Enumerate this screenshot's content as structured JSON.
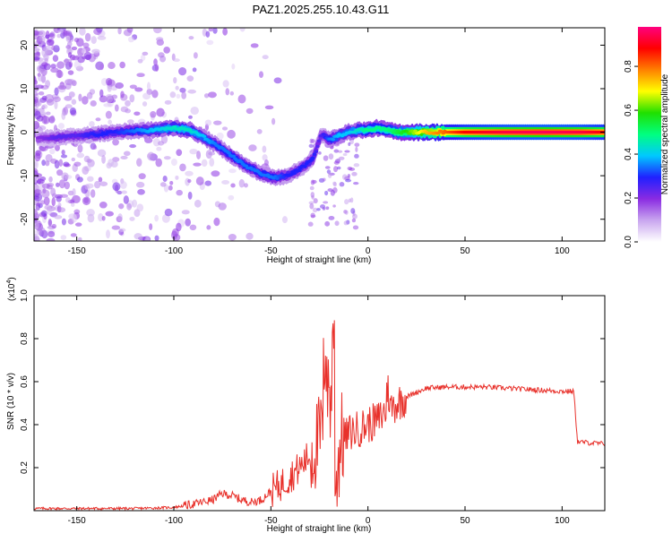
{
  "title": "PAZ1.2025.255.10.43.G11",
  "chart_data": [
    {
      "type": "heatmap",
      "xlabel": "Height of straight line (km)",
      "ylabel": "Frequency (Hz)",
      "xlim": [
        -172,
        122
      ],
      "ylim": [
        -25,
        24
      ],
      "xticks": [
        -150,
        -100,
        -50,
        0,
        50,
        100
      ],
      "yticks": [
        20,
        10,
        0,
        -10,
        -20
      ],
      "colorbar": {
        "label": "Normalized spectral amplitude",
        "range": [
          0,
          0.98
        ],
        "ticks": [
          0.0,
          0.2,
          0.4,
          0.6,
          0.8
        ],
        "colors": [
          "#ffffff",
          "#c9a6ef",
          "#8a2be2",
          "#2020ff",
          "#00c8ff",
          "#00ff80",
          "#20e000",
          "#ffff00",
          "#ff8000",
          "#ff0000",
          "#ff007f"
        ]
      },
      "ridge": {
        "x": [
          -170,
          -160,
          -150,
          -140,
          -130,
          -120,
          -110,
          -100,
          -92,
          -85,
          -78,
          -70,
          -62,
          -55,
          -48,
          -42,
          -37,
          -32,
          -28,
          -26,
          -24,
          -22,
          -20,
          -15,
          -10,
          -5,
          0,
          5,
          10,
          15,
          20,
          30,
          50,
          70,
          90,
          110,
          122
        ],
        "y": [
          -1.5,
          -1.2,
          -0.8,
          -0.5,
          0,
          0.3,
          0.5,
          1,
          0.5,
          -1,
          -3,
          -5.5,
          -8,
          -9.5,
          -10.5,
          -10,
          -9,
          -7.5,
          -6,
          -3,
          -0.5,
          -1,
          -1.8,
          -0.8,
          0,
          0.5,
          0.5,
          1,
          0.5,
          0,
          0,
          0,
          0,
          0,
          0,
          0,
          0
        ],
        "amplitude": [
          0.2,
          0.25,
          0.25,
          0.3,
          0.3,
          0.35,
          0.4,
          0.45,
          0.45,
          0.4,
          0.35,
          0.35,
          0.35,
          0.35,
          0.35,
          0.3,
          0.3,
          0.3,
          0.3,
          0.25,
          0.25,
          0.3,
          0.35,
          0.4,
          0.4,
          0.45,
          0.5,
          0.5,
          0.5,
          0.55,
          0.6,
          0.75,
          0.9,
          0.95,
          0.97,
          0.95,
          0.9
        ]
      }
    },
    {
      "type": "line",
      "xlabel": "Height of straight line (km)",
      "ylabel": "SNR (10 * v/v)",
      "scale_label": "(x10",
      "scale_exp": "4",
      "scale_close": ")",
      "xlim": [
        -172,
        122
      ],
      "ylim": [
        0,
        1.0
      ],
      "xticks": [
        -150,
        -100,
        -50,
        0,
        50,
        100
      ],
      "yticks": [
        1.0,
        0.8,
        0.6,
        0.4,
        0.2
      ],
      "series": [
        {
          "color": "#e8302a",
          "x": [
            -172,
            -150,
            -120,
            -100,
            -90,
            -80,
            -75,
            -70,
            -65,
            -60,
            -55,
            -50,
            -45,
            -40,
            -35,
            -30,
            -25,
            -22,
            -20,
            -18,
            -16,
            -14,
            -12,
            -10,
            -5,
            0,
            5,
            10,
            15,
            20,
            30,
            40,
            60,
            80,
            100,
            106,
            108,
            122
          ],
          "y": [
            0.01,
            0.01,
            0.01,
            0.015,
            0.03,
            0.05,
            0.08,
            0.07,
            0.05,
            0.04,
            0.05,
            0.09,
            0.12,
            0.16,
            0.2,
            0.26,
            0.33,
            0.45,
            0.62,
            0.3,
            0.15,
            0.34,
            0.33,
            0.36,
            0.38,
            0.4,
            0.42,
            0.47,
            0.5,
            0.53,
            0.57,
            0.575,
            0.575,
            0.565,
            0.555,
            0.555,
            0.32,
            0.31
          ]
        }
      ]
    }
  ]
}
